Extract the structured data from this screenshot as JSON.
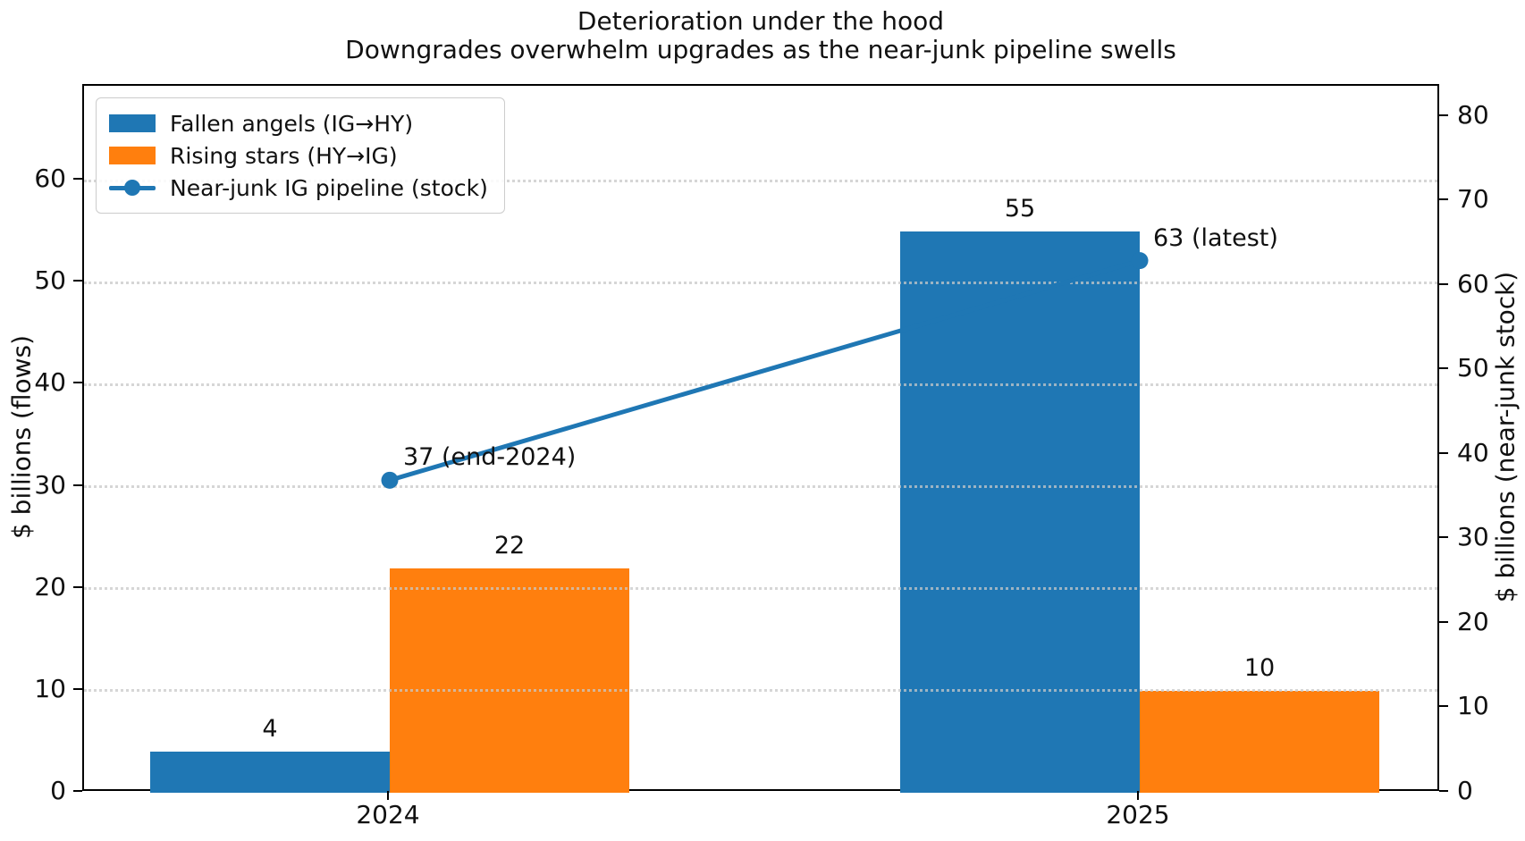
{
  "chart_data": {
    "type": "bar",
    "title": "Deterioration under the hood",
    "subtitle": "Downgrades overwhelm upgrades as the near-junk pipeline swells",
    "categories": [
      "2024",
      "2025"
    ],
    "series": [
      {
        "name": "Fallen angels (IG→HY)",
        "type": "bar",
        "axis": "left",
        "color": "#1f77b4",
        "values": [
          4,
          55
        ]
      },
      {
        "name": "Rising stars (HY→IG)",
        "type": "bar",
        "axis": "left",
        "color": "#ff7f0e",
        "values": [
          22,
          10
        ]
      },
      {
        "name": "Near-junk IG pipeline (stock)",
        "type": "line",
        "axis": "right",
        "color": "#1f77b4",
        "marker": "circle",
        "values": [
          37,
          63
        ]
      }
    ],
    "point_annotations": [
      {
        "category": "2024",
        "text": "37 (end-2024)"
      },
      {
        "category": "2025",
        "text": "63 (latest)"
      }
    ],
    "left_axis": {
      "label": "$ billions (flows)",
      "ticks": [
        0,
        10,
        20,
        30,
        40,
        50,
        60
      ],
      "ylim": [
        0,
        69.3
      ]
    },
    "right_axis": {
      "label": "$ billions (near-junk stock)",
      "ticks": [
        0,
        10,
        20,
        30,
        40,
        50,
        60,
        70,
        80
      ],
      "ylim": [
        0,
        83.7
      ]
    },
    "grid": {
      "axis": "y",
      "style": "dotted",
      "color": "#c8c8c8"
    },
    "legend": {
      "position": "upper-left"
    }
  }
}
